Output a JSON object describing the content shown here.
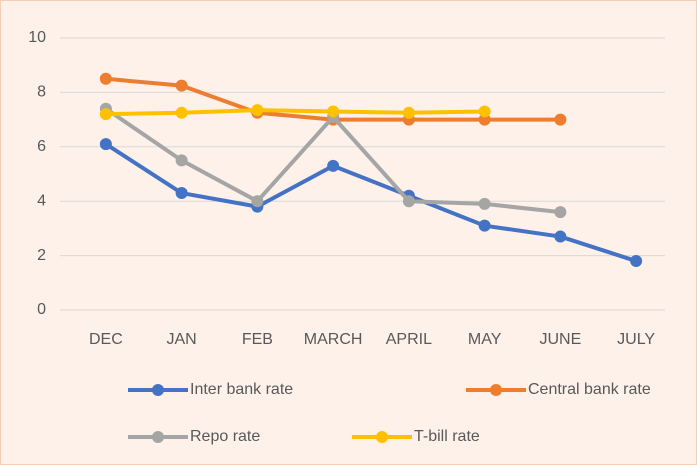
{
  "chart_data": {
    "type": "line",
    "categories": [
      "DEC",
      "JAN",
      "FEB",
      "MARCH",
      "APRIL",
      "MAY",
      "JUNE",
      "JULY"
    ],
    "series": [
      {
        "name": "Inter bank rate",
        "color": "#4472c4",
        "values": [
          6.1,
          4.3,
          3.8,
          5.3,
          4.2,
          3.1,
          2.7,
          1.8
        ]
      },
      {
        "name": "Central bank rate",
        "color": "#ed7d31",
        "values": [
          8.5,
          8.25,
          7.25,
          7.0,
          7.0,
          7.0,
          7.0,
          null
        ]
      },
      {
        "name": "Repo rate",
        "color": "#a5a5a5",
        "values": [
          7.4,
          5.5,
          4.0,
          7.1,
          4.0,
          3.9,
          3.6,
          null
        ]
      },
      {
        "name": "T-bill rate",
        "color": "#ffc000",
        "values": [
          7.2,
          7.25,
          7.35,
          7.3,
          7.25,
          7.3,
          null,
          null
        ]
      }
    ],
    "ylim": [
      0,
      10
    ],
    "yticks": [
      0,
      2,
      4,
      6,
      8,
      10
    ],
    "grid": true,
    "legend": "bottom"
  }
}
